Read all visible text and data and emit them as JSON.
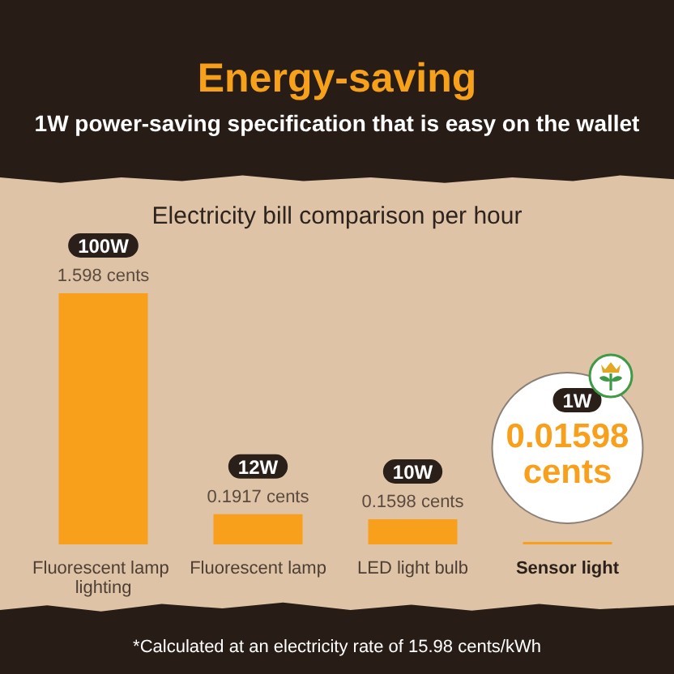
{
  "chart_data": {
    "type": "bar",
    "title": "Energy-saving",
    "subtitle": "1W power-saving specification that is easy on the wallet",
    "categories": [
      "Fluorescent lamp lighting",
      "Fluorescent lamp",
      "LED light bulb",
      "Sensor light"
    ],
    "values": [
      1.598,
      0.1917,
      0.1598,
      0.01598
    ],
    "color": "#f8a01c",
    "value_labels": [
      "1.598 cents",
      "0.1917 cents",
      "0.1598 cents",
      "0.01598 cents"
    ],
    "annotations": [
      "Electricity bill comparison per hour",
      {
        "text": "100W",
        "x": "Fluorescent lamp lighting",
        "y": 1.598
      },
      {
        "text": "12W",
        "x": "Fluorescent lamp",
        "y": 0.1917
      },
      {
        "text": "10W",
        "x": "LED light bulb",
        "y": 0.1598
      },
      "1W",
      "*Calculated at an electricity rate of 15.98 cents/kWh"
    ]
  }
}
